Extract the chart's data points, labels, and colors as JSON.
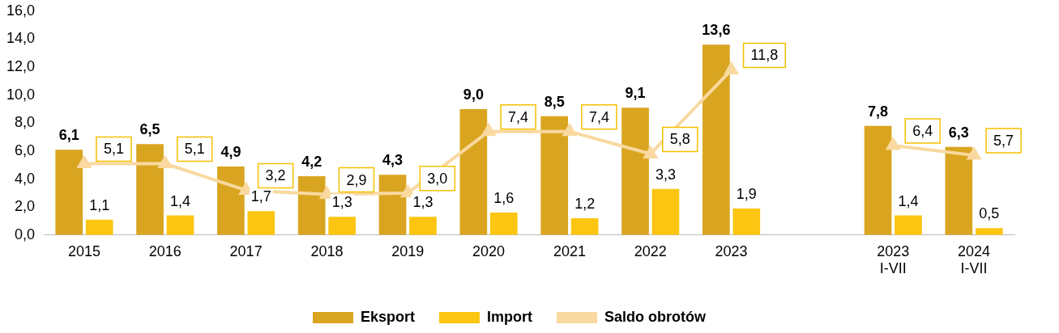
{
  "chart_data": {
    "type": "bar",
    "categories": [
      "2015",
      "2016",
      "2017",
      "2018",
      "2019",
      "2020",
      "2021",
      "2022",
      "2023",
      null,
      "2023\nI-VII",
      "2024\nI-VII"
    ],
    "series": [
      {
        "name": "Eksport",
        "color": "#d9a521",
        "values": [
          6.1,
          6.5,
          4.9,
          4.2,
          4.3,
          9.0,
          8.5,
          9.1,
          13.6,
          null,
          7.8,
          6.3
        ],
        "value_labels": [
          "6,1",
          "6,5",
          "4,9",
          "4,2",
          "4,3",
          "9,0",
          "8,5",
          "9,1",
          "13,6",
          null,
          "7,8",
          "6,3"
        ]
      },
      {
        "name": "Import",
        "color": "#fbc512",
        "values": [
          1.1,
          1.4,
          1.7,
          1.3,
          1.3,
          1.6,
          1.2,
          3.3,
          1.9,
          null,
          1.4,
          0.5
        ],
        "value_labels": [
          "1,1",
          "1,4",
          "1,7",
          "1,3",
          "1,3",
          "1,6",
          "1,2",
          "3,3",
          "1,9",
          null,
          "1,4",
          "0,5"
        ]
      },
      {
        "name": "Saldo obrotów",
        "type": "line",
        "color": "#f9d9a0",
        "marker": "triangle",
        "values": [
          5.1,
          5.1,
          3.2,
          2.9,
          3.0,
          7.4,
          7.4,
          5.8,
          11.8,
          null,
          6.4,
          5.7
        ],
        "value_labels": [
          "5,1",
          "5,1",
          "3,2",
          "2,9",
          "3,0",
          "7,4",
          "7,4",
          "5,8",
          "11,8",
          null,
          "6,4",
          "5,7"
        ]
      }
    ],
    "ylim": [
      0,
      16
    ],
    "yticks": [
      {
        "value": 0,
        "label": "0,0"
      },
      {
        "value": 2,
        "label": "2,0"
      },
      {
        "value": 4,
        "label": "4,0"
      },
      {
        "value": 6,
        "label": "6,0"
      },
      {
        "value": 8,
        "label": "8,0"
      },
      {
        "value": 10,
        "label": "10,0"
      },
      {
        "value": 12,
        "label": "12,0"
      },
      {
        "value": 14,
        "label": "14,0"
      },
      {
        "value": 16,
        "label": "16,0"
      }
    ],
    "grid": false,
    "legend": "bottom"
  }
}
